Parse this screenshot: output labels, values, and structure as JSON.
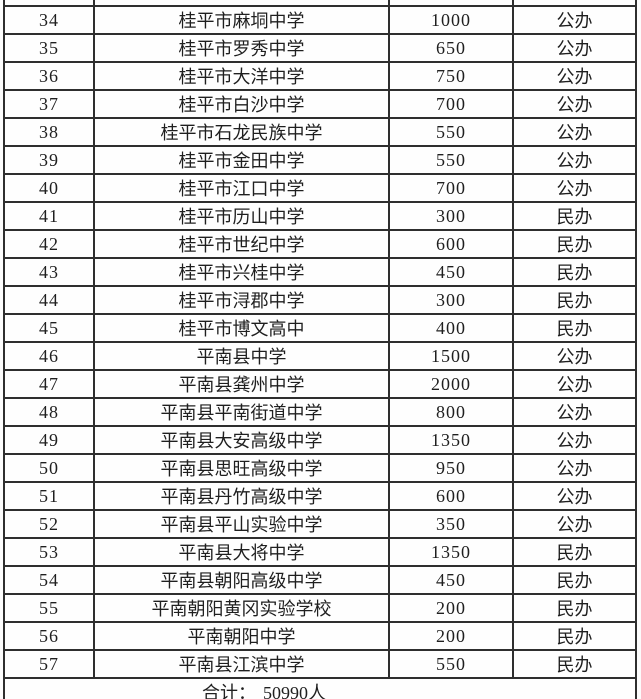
{
  "table": {
    "rows": [
      {
        "no": "34",
        "school": "桂平市麻垌中学",
        "quota": "1000",
        "type": "公办"
      },
      {
        "no": "35",
        "school": "桂平市罗秀中学",
        "quota": "650",
        "type": "公办"
      },
      {
        "no": "36",
        "school": "桂平市大洋中学",
        "quota": "750",
        "type": "公办"
      },
      {
        "no": "37",
        "school": "桂平市白沙中学",
        "quota": "700",
        "type": "公办"
      },
      {
        "no": "38",
        "school": "桂平市石龙民族中学",
        "quota": "550",
        "type": "公办"
      },
      {
        "no": "39",
        "school": "桂平市金田中学",
        "quota": "550",
        "type": "公办"
      },
      {
        "no": "40",
        "school": "桂平市江口中学",
        "quota": "700",
        "type": "公办"
      },
      {
        "no": "41",
        "school": "桂平市历山中学",
        "quota": "300",
        "type": "民办"
      },
      {
        "no": "42",
        "school": "桂平市世纪中学",
        "quota": "600",
        "type": "民办"
      },
      {
        "no": "43",
        "school": "桂平市兴桂中学",
        "quota": "450",
        "type": "民办"
      },
      {
        "no": "44",
        "school": "桂平市浔郡中学",
        "quota": "300",
        "type": "民办"
      },
      {
        "no": "45",
        "school": "桂平市博文高中",
        "quota": "400",
        "type": "民办"
      },
      {
        "no": "46",
        "school": "平南县中学",
        "quota": "1500",
        "type": "公办"
      },
      {
        "no": "47",
        "school": "平南县龚州中学",
        "quota": "2000",
        "type": "公办"
      },
      {
        "no": "48",
        "school": "平南县平南街道中学",
        "quota": "800",
        "type": "公办"
      },
      {
        "no": "49",
        "school": "平南县大安高级中学",
        "quota": "1350",
        "type": "公办"
      },
      {
        "no": "50",
        "school": "平南县思旺高级中学",
        "quota": "950",
        "type": "公办"
      },
      {
        "no": "51",
        "school": "平南县丹竹高级中学",
        "quota": "600",
        "type": "公办"
      },
      {
        "no": "52",
        "school": "平南县平山实验中学",
        "quota": "350",
        "type": "公办"
      },
      {
        "no": "53",
        "school": "平南县大将中学",
        "quota": "1350",
        "type": "民办"
      },
      {
        "no": "54",
        "school": "平南县朝阳高级中学",
        "quota": "450",
        "type": "民办"
      },
      {
        "no": "55",
        "school": "平南朝阳黄冈实验学校",
        "quota": "200",
        "type": "民办"
      },
      {
        "no": "56",
        "school": "平南朝阳中学",
        "quota": "200",
        "type": "民办"
      },
      {
        "no": "57",
        "school": "平南县江滨中学",
        "quota": "550",
        "type": "民办"
      }
    ],
    "footer": {
      "label": "合计：",
      "value": "50990人"
    }
  },
  "colors": {
    "border": "#2e2e2e",
    "text": "#1f1f1f",
    "cell_background": "#fefefe",
    "page_background": "#fcfcfc"
  }
}
